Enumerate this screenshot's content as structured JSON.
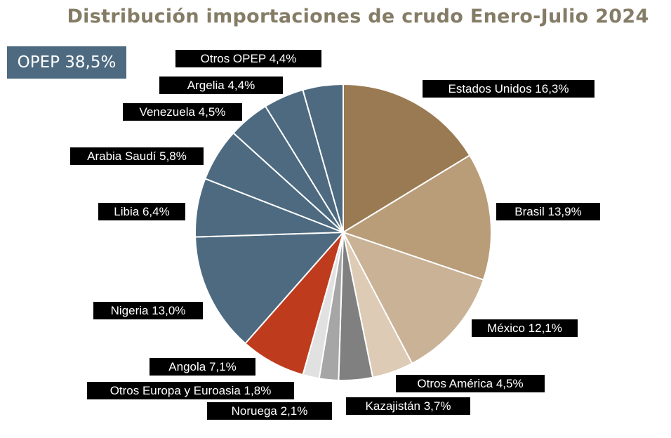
{
  "chart_data": {
    "type": "pie",
    "title": "Distribución importaciones de crudo Enero-Julio 2024",
    "group_annotation": "OPEP 38,5%",
    "slices": [
      {
        "label": "Estados Unidos 16,3%",
        "value": 16.3,
        "color": "#9a7a52"
      },
      {
        "label": "Brasil 13,9%",
        "value": 13.9,
        "color": "#b99c78"
      },
      {
        "label": "México 12,1%",
        "value": 12.1,
        "color": "#c9b296"
      },
      {
        "label": "Otros América 4,5%",
        "value": 4.5,
        "color": "#ddcbb5"
      },
      {
        "label": "Kazajistán 3,7%",
        "value": 3.7,
        "color": "#808080"
      },
      {
        "label": "Noruega 2,1%",
        "value": 2.1,
        "color": "#a6a6a6"
      },
      {
        "label": "Otros Europa y Euroasia 1,8%",
        "value": 1.8,
        "color": "#e1e1e1"
      },
      {
        "label": "Angola 7,1%",
        "value": 7.1,
        "color": "#bf3b1e"
      },
      {
        "label": "Nigeria 13,0%",
        "value": 13.0,
        "color": "#4d6a80"
      },
      {
        "label": "Libia 6,4%",
        "value": 6.4,
        "color": "#4d6a80"
      },
      {
        "label": "Arabia Saudí 5,8%",
        "value": 5.8,
        "color": "#4d6a80"
      },
      {
        "label": "Venezuela 4,5%",
        "value": 4.5,
        "color": "#4d6a80"
      },
      {
        "label": "Argelia 4,4%",
        "value": 4.4,
        "color": "#4d6a80"
      },
      {
        "label": "Otros OPEP 4,4%",
        "value": 4.4,
        "color": "#4d6a80"
      }
    ],
    "start": "top",
    "direction": "clockwise",
    "legend": "none"
  }
}
